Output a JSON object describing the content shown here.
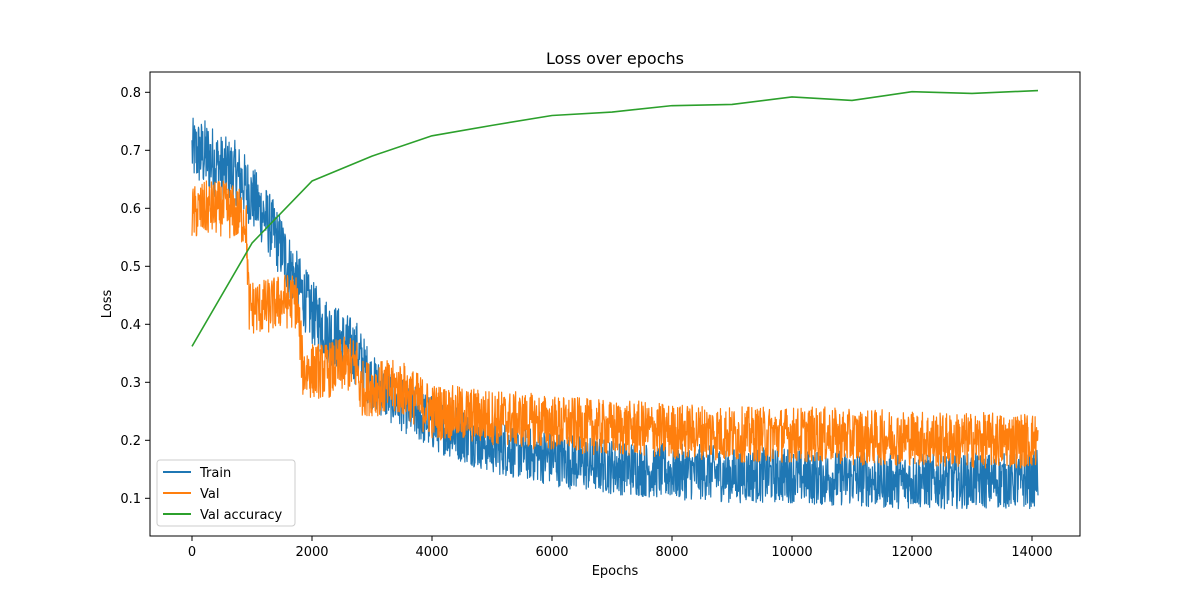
{
  "chart_data": {
    "type": "line",
    "title": "Loss over epochs",
    "xlabel": "Epochs",
    "ylabel": "Loss",
    "xlim": [
      -700,
      14800
    ],
    "ylim": [
      0.035,
      0.835
    ],
    "xticks": [
      0,
      2000,
      4000,
      6000,
      8000,
      10000,
      12000,
      14000
    ],
    "yticks": [
      0.1,
      0.2,
      0.3,
      0.4,
      0.5,
      0.6,
      0.7,
      0.8
    ],
    "xtick_labels": [
      "0",
      "2000",
      "4000",
      "6000",
      "8000",
      "10000",
      "12000",
      "14000"
    ],
    "ytick_labels": [
      "0.1",
      "0.2",
      "0.3",
      "0.4",
      "0.5",
      "0.6",
      "0.7",
      "0.8"
    ],
    "grid": false,
    "legend_position": "lower-left",
    "series": [
      {
        "name": "Train",
        "color": "#1f77b4",
        "x": [
          0,
          250,
          500,
          750,
          1000,
          1250,
          1500,
          1750,
          2000,
          2250,
          2500,
          2750,
          3000,
          3500,
          4000,
          4500,
          5000,
          5500,
          6000,
          6500,
          7000,
          7500,
          8000,
          8500,
          9000,
          9500,
          10000,
          10500,
          11000,
          11500,
          12000,
          12500,
          13000,
          13500,
          14000,
          14100
        ],
        "y": [
          0.7,
          0.69,
          0.67,
          0.66,
          0.62,
          0.58,
          0.53,
          0.47,
          0.42,
          0.39,
          0.37,
          0.35,
          0.3,
          0.26,
          0.23,
          0.21,
          0.19,
          0.18,
          0.17,
          0.16,
          0.155,
          0.15,
          0.145,
          0.145,
          0.14,
          0.14,
          0.14,
          0.135,
          0.135,
          0.13,
          0.13,
          0.13,
          0.13,
          0.13,
          0.13,
          0.14
        ],
        "spread": [
          0.035,
          0.04,
          0.035,
          0.035,
          0.035,
          0.035,
          0.035,
          0.035,
          0.035,
          0.035,
          0.035,
          0.035,
          0.03,
          0.028,
          0.03,
          0.03,
          0.03,
          0.03,
          0.03,
          0.03,
          0.03,
          0.03,
          0.03,
          0.03,
          0.03,
          0.03,
          0.03,
          0.03,
          0.03,
          0.03,
          0.03,
          0.03,
          0.03,
          0.03,
          0.03,
          0.03
        ]
      },
      {
        "name": "Val",
        "color": "#ff7f0e",
        "x": [
          0,
          250,
          500,
          750,
          900,
          950,
          1250,
          1500,
          1750,
          1850,
          2000,
          2250,
          2500,
          2750,
          2800,
          3000,
          3500,
          4000,
          4500,
          5000,
          5500,
          6000,
          6500,
          7000,
          7500,
          8000,
          8500,
          9000,
          9500,
          10000,
          10500,
          11000,
          11500,
          12000,
          12500,
          13000,
          13500,
          14000,
          14100
        ],
        "y": [
          0.59,
          0.6,
          0.6,
          0.59,
          0.58,
          0.43,
          0.43,
          0.44,
          0.44,
          0.32,
          0.32,
          0.32,
          0.33,
          0.33,
          0.29,
          0.29,
          0.29,
          0.25,
          0.245,
          0.24,
          0.235,
          0.23,
          0.225,
          0.22,
          0.22,
          0.215,
          0.215,
          0.21,
          0.21,
          0.21,
          0.21,
          0.205,
          0.205,
          0.205,
          0.2,
          0.2,
          0.2,
          0.2,
          0.2
        ],
        "spread": [
          0.03,
          0.03,
          0.03,
          0.03,
          0.03,
          0.03,
          0.03,
          0.03,
          0.03,
          0.03,
          0.03,
          0.03,
          0.03,
          0.03,
          0.03,
          0.03,
          0.03,
          0.03,
          0.03,
          0.03,
          0.03,
          0.03,
          0.03,
          0.03,
          0.03,
          0.03,
          0.03,
          0.03,
          0.03,
          0.03,
          0.03,
          0.03,
          0.03,
          0.03,
          0.03,
          0.03,
          0.03,
          0.03,
          0.03
        ]
      },
      {
        "name": "Val accuracy",
        "color": "#2ca02c",
        "x": [
          0,
          1000,
          2000,
          3000,
          4000,
          5000,
          6000,
          7000,
          8000,
          9000,
          10000,
          11000,
          12000,
          13000,
          14100
        ],
        "y": [
          0.362,
          0.54,
          0.647,
          0.69,
          0.725,
          0.743,
          0.76,
          0.766,
          0.777,
          0.779,
          0.792,
          0.786,
          0.801,
          0.798,
          0.803
        ]
      }
    ]
  }
}
